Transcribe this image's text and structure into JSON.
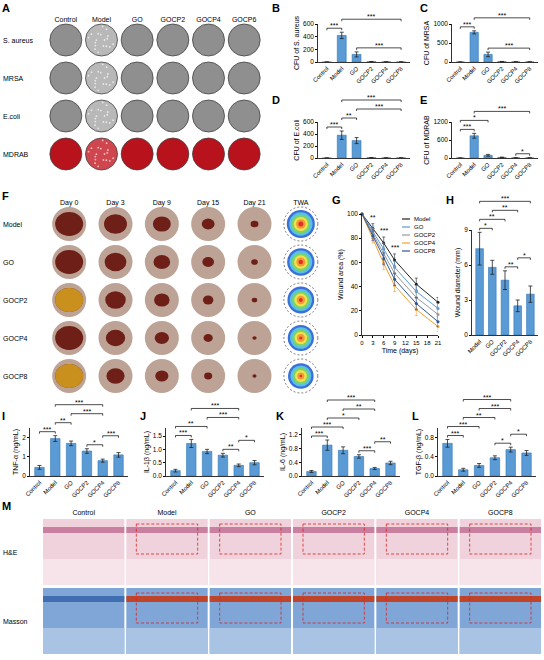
{
  "chart_data": [
    {
      "panel": "B",
      "type": "bar",
      "y_label": "CFU of S. aureus",
      "categories": [
        "Control",
        "Model",
        "GO",
        "GOCP2",
        "GOCP4",
        "GOCP8"
      ],
      "values": [
        0,
        420,
        120,
        5,
        2,
        1
      ],
      "errors": [
        0,
        50,
        40,
        3,
        1,
        1
      ],
      "color": "#5b9bd5",
      "ylim": [
        0,
        600
      ],
      "yticks": [
        0,
        200,
        400,
        600
      ],
      "grid": false,
      "annotations": [
        {
          "from": "Control",
          "to": "Model",
          "label": "***"
        },
        {
          "from": "Model",
          "to": "GOCP8",
          "label": "***"
        },
        {
          "from": "GO",
          "to": "GOCP8",
          "label": "***"
        }
      ]
    },
    {
      "panel": "C",
      "type": "bar",
      "y_label": "CFU of MRSA",
      "categories": [
        "Control",
        "Model",
        "GO",
        "GOCP2",
        "GOCP4",
        "GOCP8"
      ],
      "values": [
        0,
        780,
        200,
        10,
        3,
        2
      ],
      "errors": [
        0,
        40,
        60,
        5,
        2,
        1
      ],
      "color": "#5b9bd5",
      "ylim": [
        0,
        1000
      ],
      "yticks": [
        0,
        500,
        1000
      ],
      "grid": false,
      "annotations": [
        {
          "from": "Control",
          "to": "Model",
          "label": "***"
        },
        {
          "from": "Model",
          "to": "GOCP8",
          "label": "***"
        },
        {
          "from": "GO",
          "to": "GOCP8",
          "label": "***"
        }
      ]
    },
    {
      "panel": "D",
      "type": "bar",
      "y_label": "CFU of E.coli",
      "categories": [
        "Control",
        "Model",
        "GO",
        "GOCP2",
        "GOCP4",
        "GOCP8"
      ],
      "values": [
        0,
        380,
        290,
        5,
        2,
        2
      ],
      "errors": [
        0,
        70,
        50,
        3,
        1,
        1
      ],
      "color": "#5b9bd5",
      "ylim": [
        0,
        600
      ],
      "yticks": [
        0,
        200,
        400,
        600
      ],
      "grid": false,
      "annotations": [
        {
          "from": "Control",
          "to": "Model",
          "label": "***"
        },
        {
          "from": "Model",
          "to": "GO",
          "label": "**"
        },
        {
          "from": "Model",
          "to": "GOCP8",
          "label": "***"
        },
        {
          "from": "GO",
          "to": "GOCP8",
          "label": "***"
        }
      ]
    },
    {
      "panel": "E",
      "type": "bar",
      "y_label": "CFU of MDRAB",
      "categories": [
        "Control",
        "Model",
        "GO",
        "GOCP2",
        "GOCP4",
        "GOCP8"
      ],
      "values": [
        0,
        740,
        90,
        20,
        5,
        3
      ],
      "errors": [
        0,
        80,
        30,
        8,
        3,
        2
      ],
      "color": "#5b9bd5",
      "ylim": [
        0,
        1200
      ],
      "yticks": [
        0,
        600,
        1200
      ],
      "grid": false,
      "annotations": [
        {
          "from": "Control",
          "to": "Model",
          "label": "***"
        },
        {
          "from": "Control",
          "to": "GO",
          "label": "*"
        },
        {
          "from": "Model",
          "to": "GOCP8",
          "label": "***"
        },
        {
          "from": "GOCP4",
          "to": "GOCP8",
          "label": "*"
        }
      ]
    },
    {
      "panel": "G",
      "type": "line",
      "x_label": "Time (days)",
      "y_label": "Wound area (%)",
      "x": [
        0,
        3,
        6,
        9,
        15,
        21
      ],
      "series": [
        {
          "name": "Model",
          "color": "#222222",
          "values": [
            100,
            88,
            76,
            62,
            42,
            27
          ],
          "errors": [
            0,
            4,
            5,
            5,
            5,
            4
          ]
        },
        {
          "name": "GO",
          "color": "#5b9bd5",
          "values": [
            100,
            86,
            71,
            56,
            36,
            22
          ],
          "errors": [
            0,
            4,
            5,
            5,
            5,
            4
          ]
        },
        {
          "name": "GOCP2",
          "color": "#999999",
          "values": [
            100,
            84,
            67,
            51,
            31,
            17
          ],
          "errors": [
            0,
            4,
            5,
            5,
            5,
            4
          ]
        },
        {
          "name": "GOCP4",
          "color": "#f0a030",
          "values": [
            100,
            80,
            59,
            41,
            21,
            7
          ],
          "errors": [
            0,
            4,
            5,
            5,
            5,
            4
          ]
        },
        {
          "name": "GOCP8",
          "color": "#2f5597",
          "values": [
            100,
            82,
            63,
            46,
            26,
            11
          ],
          "errors": [
            0,
            4,
            5,
            5,
            5,
            4
          ]
        }
      ],
      "xlim": [
        0,
        21
      ],
      "xticks": [
        0,
        3,
        6,
        9,
        12,
        15,
        18,
        21
      ],
      "ylim": [
        0,
        100
      ],
      "yticks": [
        0,
        20,
        40,
        60,
        80,
        100
      ],
      "legend": "top right",
      "grid": false,
      "annotations": [
        {
          "x": 3,
          "label": "**"
        },
        {
          "x": 6,
          "label": "***"
        },
        {
          "x": 9,
          "label": "***"
        }
      ]
    },
    {
      "panel": "H",
      "type": "bar",
      "y_label": "Wound diameter (mm)",
      "categories": [
        "Model",
        "GO",
        "GOCP2",
        "GOCP4",
        "GOCP8"
      ],
      "values": [
        7.4,
        5.8,
        4.7,
        2.5,
        3.5
      ],
      "errors": [
        1.4,
        0.6,
        0.8,
        0.5,
        0.7
      ],
      "color": "#5b9bd5",
      "ylim": [
        0,
        9
      ],
      "yticks": [
        0,
        3,
        6,
        9
      ],
      "grid": false,
      "annotations": [
        {
          "from": "Model",
          "to": "GO",
          "label": "*"
        },
        {
          "from": "Model",
          "to": "GOCP2",
          "label": "**"
        },
        {
          "from": "Model",
          "to": "GOCP8",
          "label": "***"
        },
        {
          "from": "GO",
          "to": "GOCP4",
          "label": "**"
        },
        {
          "from": "GOCP2",
          "to": "GOCP4",
          "label": "**"
        },
        {
          "from": "GOCP4",
          "to": "GOCP8",
          "label": "*"
        }
      ]
    },
    {
      "panel": "I",
      "type": "bar",
      "y_label": "TNF-α (ng/mL)",
      "categories": [
        "Control",
        "Model",
        "GO",
        "GOCP2",
        "GOCP4",
        "GOCP8"
      ],
      "values": [
        0.45,
        1.95,
        1.7,
        1.3,
        0.8,
        1.1
      ],
      "errors": [
        0.1,
        0.15,
        0.12,
        0.12,
        0.08,
        0.12
      ],
      "color": "#5b9bd5",
      "ylim": [
        0,
        2.5
      ],
      "yticks": [
        0,
        1,
        2
      ],
      "grid": false,
      "annotations": [
        {
          "from": "Control",
          "to": "Model",
          "label": "***"
        },
        {
          "from": "Model",
          "to": "GO",
          "label": "**"
        },
        {
          "from": "Model",
          "to": "GOCP4",
          "label": "***"
        },
        {
          "from": "GO",
          "to": "GOCP4",
          "label": "***"
        },
        {
          "from": "GOCP2",
          "to": "GOCP4",
          "label": "*"
        },
        {
          "from": "GOCP4",
          "to": "GOCP8",
          "label": "***"
        }
      ]
    },
    {
      "panel": "J",
      "type": "bar",
      "y_label": "IL-1β (ng/mL)",
      "categories": [
        "Control",
        "Model",
        "GO",
        "GOCP2",
        "GOCP4",
        "GOCP8"
      ],
      "values": [
        0.2,
        1.22,
        0.92,
        0.78,
        0.4,
        0.5
      ],
      "errors": [
        0.05,
        0.15,
        0.08,
        0.07,
        0.05,
        0.08
      ],
      "color": "#5b9bd5",
      "ylim": [
        0,
        1.8
      ],
      "yticks": [
        {
          "value": 0,
          "label": "0.0"
        },
        0.5,
        {
          "value": 1,
          "label": "1.0"
        },
        1.5
      ],
      "grid": false,
      "annotations": [
        {
          "from": "Control",
          "to": "Model",
          "label": "***"
        },
        {
          "from": "Control",
          "to": "GO",
          "label": "**"
        },
        {
          "from": "Model",
          "to": "GOCP4",
          "label": "***"
        },
        {
          "from": "GO",
          "to": "GOCP4",
          "label": "***"
        },
        {
          "from": "GOCP2",
          "to": "GOCP4",
          "label": "**"
        },
        {
          "from": "GOCP4",
          "to": "GOCP8",
          "label": "*"
        }
      ]
    },
    {
      "panel": "K",
      "type": "bar",
      "y_label": "IL-6 (ng/mL)",
      "categories": [
        "Control",
        "Model",
        "GO",
        "GOCP2",
        "GOCP4",
        "GOCP8"
      ],
      "values": [
        0.13,
        0.9,
        0.75,
        0.57,
        0.22,
        0.38
      ],
      "errors": [
        0.03,
        0.15,
        0.1,
        0.05,
        0.03,
        0.05
      ],
      "color": "#5b9bd5",
      "ylim": [
        0,
        1.4
      ],
      "yticks": [
        {
          "value": 0,
          "label": "0.0"
        },
        0.4,
        0.8,
        1.2
      ],
      "grid": false,
      "annotations": [
        {
          "from": "Control",
          "to": "Model",
          "label": "***"
        },
        {
          "from": "Control",
          "to": "GO",
          "label": "***"
        },
        {
          "from": "Model",
          "to": "GOCP2",
          "label": "*"
        },
        {
          "from": "Model",
          "to": "GOCP4",
          "label": "***"
        },
        {
          "from": "GO",
          "to": "GOCP4",
          "label": "**"
        },
        {
          "from": "GOCP2",
          "to": "GOCP4",
          "label": "***"
        },
        {
          "from": "GOCP4",
          "to": "GOCP8",
          "label": "**"
        }
      ]
    },
    {
      "panel": "L",
      "type": "bar",
      "y_label": "TGF-β (ng/mL)",
      "categories": [
        "Control",
        "Model",
        "GO",
        "GOCP2",
        "GOCP4",
        "GOCP8"
      ],
      "values": [
        0.68,
        0.13,
        0.22,
        0.38,
        0.55,
        0.48
      ],
      "errors": [
        0.08,
        0.03,
        0.04,
        0.04,
        0.05,
        0.05
      ],
      "color": "#5b9bd5",
      "ylim": [
        0,
        1.0
      ],
      "yticks": [
        {
          "value": 0,
          "label": "0.0"
        },
        0.4,
        0.8
      ],
      "grid": false,
      "annotations": [
        {
          "from": "Control",
          "to": "Model",
          "label": "***"
        },
        {
          "from": "Control",
          "to": "GO",
          "label": "***"
        },
        {
          "from": "Model",
          "to": "GOCP2",
          "label": "**"
        },
        {
          "from": "Model",
          "to": "GOCP4",
          "label": "***"
        },
        {
          "from": "GO",
          "to": "GOCP4",
          "label": "***"
        },
        {
          "from": "GOCP2",
          "to": "GOCP4",
          "label": "*"
        },
        {
          "from": "GOCP4",
          "to": "GOCP8",
          "label": "*"
        }
      ]
    }
  ],
  "images": [
    {
      "panel": "A",
      "columns": [
        "Control",
        "Model",
        "GO",
        "GOCP2",
        "GOCP4",
        "GOCP6"
      ],
      "rows": [
        "S. aureus",
        "MRSA",
        "E.coli",
        "MDRAB"
      ]
    },
    {
      "panel": "F",
      "columns": [
        "Day 0",
        "Day 3",
        "Day 9",
        "Day 15",
        "Day 21",
        "TWA"
      ],
      "rows": [
        "Model",
        "GO",
        "GOCP2",
        "GOCP4",
        "GOCP8"
      ]
    },
    {
      "panel": "M",
      "columns": [
        "Control",
        "Model",
        "GO",
        "GOCP2",
        "GOCP4",
        "GOCP8"
      ],
      "rows": [
        "H&E",
        "Masson"
      ]
    }
  ]
}
